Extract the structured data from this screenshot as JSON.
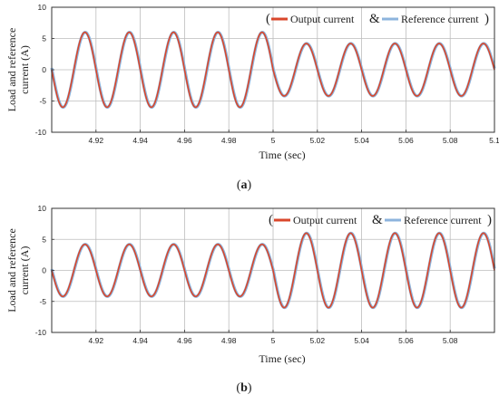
{
  "chart_data": [
    {
      "type": "line",
      "panel_label": "(a)",
      "panel_label_open": "(",
      "panel_letter": "a",
      "panel_label_close": ")",
      "xlabel": "Time (sec)",
      "ylabel": "Load and reference current (A)",
      "ylabel_lines": [
        "Load and reference",
        "current (A)"
      ],
      "xlim": [
        4.9,
        5.1
      ],
      "ylim": [
        -10,
        10
      ],
      "x_ticks": [
        4.92,
        4.94,
        4.96,
        4.98,
        5,
        5.02,
        5.04,
        5.06,
        5.08,
        5.1
      ],
      "x_tick_labels": [
        "4.92",
        "4.94",
        "4.96",
        "4.98",
        "5",
        "5.02",
        "5.04",
        "5.06",
        "5.08",
        "5.1"
      ],
      "y_ticks": [
        -10,
        -5,
        0,
        5,
        10
      ],
      "y_tick_labels": [
        "-10",
        "-5",
        "0",
        "5",
        "10"
      ],
      "grid": true,
      "legend_position": "top-right",
      "frequency_hz": 50,
      "phase_peak_at": 4.915,
      "segments": [
        {
          "from": 4.9,
          "to": 5.0,
          "amplitude": 6
        },
        {
          "from": 5.0,
          "to": 5.1,
          "amplitude": 4.2
        }
      ],
      "series": [
        {
          "name": "Output current",
          "color": "#d9472b"
        },
        {
          "name": "Reference current",
          "color": "#8db4dd"
        }
      ],
      "legend": {
        "open": "(",
        "sep": "&",
        "close": ")"
      }
    },
    {
      "type": "line",
      "panel_label": "(b)",
      "panel_label_open": "(",
      "panel_letter": "b",
      "panel_label_close": ")",
      "xlabel": "Time (sec)",
      "ylabel": "Load and reference current (A)",
      "ylabel_lines": [
        "Load and reference",
        "current (A)"
      ],
      "xlim": [
        4.9,
        5.1
      ],
      "ylim": [
        -10,
        10
      ],
      "x_ticks": [
        4.92,
        4.94,
        4.96,
        4.98,
        5,
        5.02,
        5.04,
        5.06,
        5.08
      ],
      "x_tick_labels": [
        "4.92",
        "4.94",
        "4.96",
        "4.98",
        "5",
        "5.02",
        "5.04",
        "5.06",
        "5.08"
      ],
      "y_ticks": [
        -10,
        -5,
        0,
        5,
        10
      ],
      "y_tick_labels": [
        "-10",
        "-5",
        "0",
        "5",
        "10"
      ],
      "grid": true,
      "legend_position": "top-right",
      "frequency_hz": 50,
      "phase_peak_at": 4.915,
      "segments": [
        {
          "from": 4.9,
          "to": 5.0,
          "amplitude": 4.2
        },
        {
          "from": 5.0,
          "to": 5.1,
          "amplitude": 6
        }
      ],
      "series": [
        {
          "name": "Output current",
          "color": "#d9472b"
        },
        {
          "name": "Reference current",
          "color": "#8db4dd"
        }
      ],
      "legend": {
        "open": "(",
        "sep": "&",
        "close": ")"
      }
    }
  ]
}
